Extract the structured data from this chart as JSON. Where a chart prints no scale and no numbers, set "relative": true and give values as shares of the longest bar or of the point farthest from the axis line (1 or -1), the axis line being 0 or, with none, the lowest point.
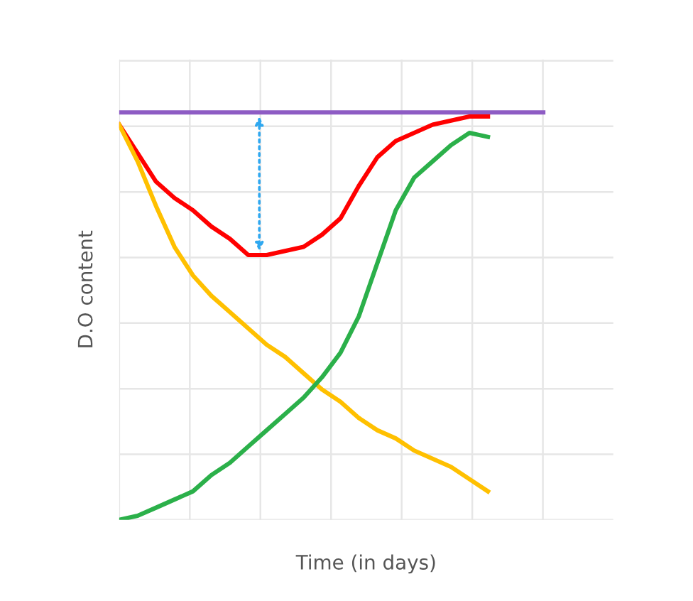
{
  "chart_data": {
    "type": "line",
    "relative": true,
    "xlabel": "Time (in days)",
    "ylabel": "D.O content",
    "grid": true,
    "legend": false,
    "marker": "none",
    "line_style": "solid",
    "categories": [
      null,
      null,
      null,
      null,
      null,
      null,
      null,
      null,
      null,
      null,
      null,
      null,
      null,
      null,
      null,
      null,
      null,
      null,
      null,
      null,
      null,
      null,
      null,
      null
    ],
    "series": [
      {
        "color": "#8e5cc4",
        "values": [
          1,
          1,
          1,
          1,
          1,
          1,
          1,
          1,
          1,
          1,
          1,
          1,
          1,
          1,
          1,
          1,
          1,
          1,
          1,
          1,
          1,
          1,
          1,
          1
        ]
      },
      {
        "color": "#ff0000",
        "values": [
          0.97,
          0.9,
          0.83,
          0.79,
          0.76,
          0.72,
          0.69,
          0.65,
          0.65,
          0.66,
          0.67,
          0.7,
          0.74,
          0.82,
          0.89,
          0.93,
          0.95,
          0.97,
          0.98,
          0.99,
          0.99,
          null,
          null,
          null
        ]
      },
      {
        "color": "#ffc000",
        "values": [
          0.97,
          0.88,
          0.77,
          0.67,
          0.6,
          0.55,
          0.51,
          0.47,
          0.43,
          0.4,
          0.36,
          0.32,
          0.29,
          0.25,
          0.22,
          0.2,
          0.17,
          0.15,
          0.13,
          0.1,
          0.07,
          null,
          null,
          null
        ]
      },
      {
        "color": "#2bb04a",
        "values": [
          0,
          0.01,
          0.03,
          0.05,
          0.07,
          0.11,
          0.14,
          0.18,
          0.22,
          0.26,
          0.3,
          0.35,
          0.41,
          0.5,
          0.63,
          0.76,
          0.84,
          0.88,
          0.92,
          0.95,
          0.94,
          null,
          null,
          null
        ]
      }
    ]
  }
}
